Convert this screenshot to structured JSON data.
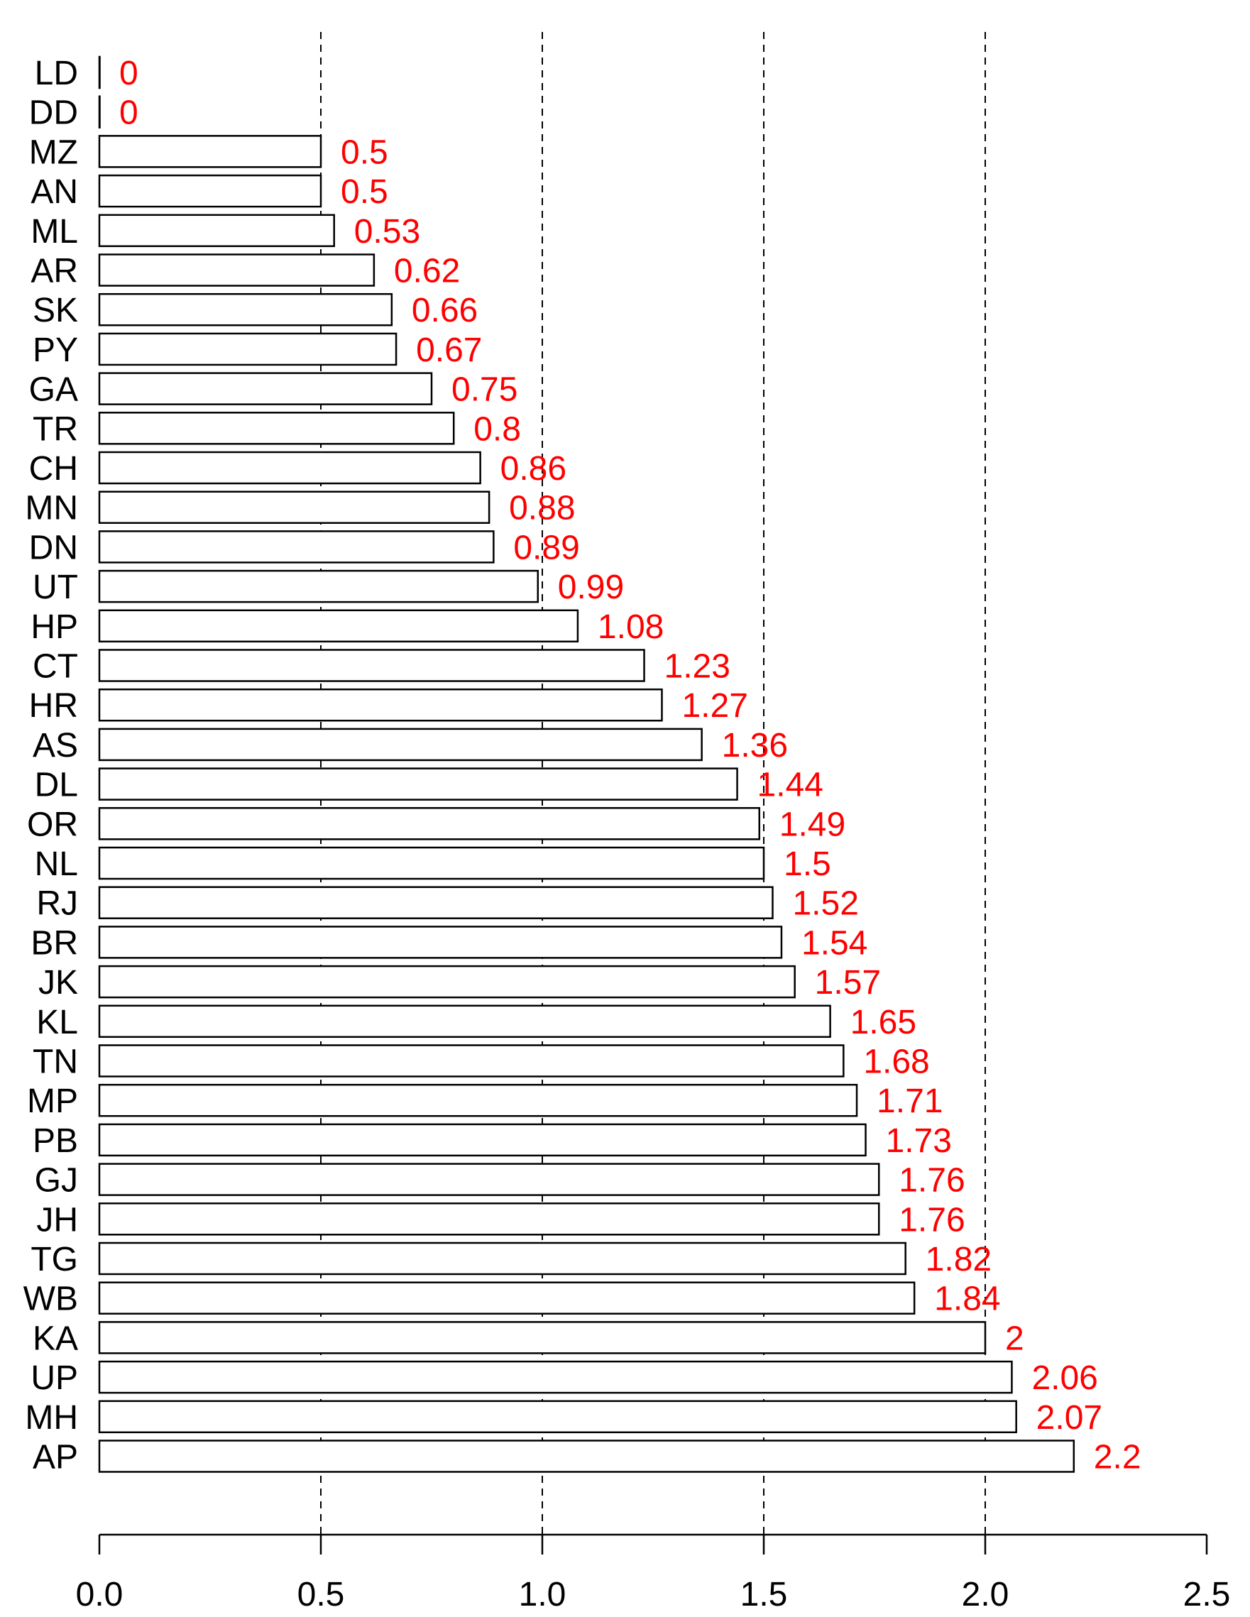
{
  "chart_data": {
    "type": "bar",
    "orientation": "horizontal",
    "title": "",
    "xlabel": "",
    "ylabel": "",
    "xlim": [
      0,
      2.5
    ],
    "xticks": [
      0.0,
      0.5,
      1.0,
      1.5,
      2.0,
      2.5
    ],
    "xtick_labels": [
      "0.0",
      "0.5",
      "1.0",
      "1.5",
      "2.0",
      "2.5"
    ],
    "gridlines": [
      0.5,
      1.0,
      1.5,
      2.0
    ],
    "grid_style": "dashed vertical",
    "bar_fill": "#ffffff",
    "bar_stroke": "#000000",
    "value_label_color": "#ff0000",
    "categories": [
      "LD",
      "DD",
      "MZ",
      "AN",
      "ML",
      "AR",
      "SK",
      "PY",
      "GA",
      "TR",
      "CH",
      "MN",
      "DN",
      "UT",
      "HP",
      "CT",
      "HR",
      "AS",
      "DL",
      "OR",
      "NL",
      "RJ",
      "BR",
      "JK",
      "KL",
      "TN",
      "MP",
      "PB",
      "GJ",
      "JH",
      "TG",
      "WB",
      "KA",
      "UP",
      "MH",
      "AP"
    ],
    "values": [
      0,
      0,
      0.5,
      0.5,
      0.53,
      0.62,
      0.66,
      0.67,
      0.75,
      0.8,
      0.86,
      0.88,
      0.89,
      0.99,
      1.08,
      1.23,
      1.27,
      1.36,
      1.44,
      1.49,
      1.5,
      1.52,
      1.54,
      1.57,
      1.65,
      1.68,
      1.71,
      1.73,
      1.76,
      1.76,
      1.82,
      1.84,
      2,
      2.06,
      2.07,
      2.2
    ],
    "value_labels": [
      "0",
      "0",
      "0.5",
      "0.5",
      "0.53",
      "0.62",
      "0.66",
      "0.67",
      "0.75",
      "0.8",
      "0.86",
      "0.88",
      "0.89",
      "0.99",
      "1.08",
      "1.23",
      "1.27",
      "1.36",
      "1.44",
      "1.49",
      "1.5",
      "1.52",
      "1.54",
      "1.57",
      "1.65",
      "1.68",
      "1.71",
      "1.73",
      "1.76",
      "1.76",
      "1.82",
      "1.84",
      "2",
      "2.06",
      "2.07",
      "2.2"
    ]
  }
}
